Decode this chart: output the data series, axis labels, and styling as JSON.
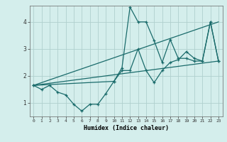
{
  "xlabel": "Humidex (Indice chaleur)",
  "background_color": "#d4eeec",
  "grid_color": "#b0d0ce",
  "line_color": "#1a6b6b",
  "xlim": [
    -0.5,
    23.5
  ],
  "ylim": [
    0.5,
    4.6
  ],
  "yticks": [
    1,
    2,
    3,
    4
  ],
  "xticks": [
    0,
    1,
    2,
    3,
    4,
    5,
    6,
    7,
    8,
    9,
    10,
    11,
    12,
    13,
    14,
    15,
    16,
    17,
    18,
    19,
    20,
    21,
    22,
    23
  ],
  "series": {
    "line1_x": [
      0,
      1,
      2,
      3,
      4,
      5,
      6,
      7,
      8,
      9,
      10,
      11,
      12,
      13,
      14,
      15,
      16,
      17,
      18,
      19,
      20,
      21,
      22,
      23
    ],
    "line1_y": [
      1.65,
      1.5,
      1.65,
      1.4,
      1.3,
      0.95,
      0.7,
      0.95,
      0.95,
      1.35,
      1.8,
      2.2,
      2.2,
      3.0,
      2.2,
      1.75,
      2.2,
      2.5,
      2.6,
      2.9,
      2.65,
      2.55,
      4.0,
      2.55
    ],
    "line2_x": [
      0,
      10,
      11,
      12,
      13,
      14,
      15,
      16,
      17,
      18,
      19,
      20,
      21,
      22,
      23
    ],
    "line2_y": [
      1.65,
      1.8,
      2.3,
      4.55,
      4.0,
      4.0,
      3.3,
      2.5,
      3.35,
      2.65,
      2.65,
      2.55,
      2.55,
      4.0,
      2.55
    ],
    "line3_x": [
      0,
      23
    ],
    "line3_y": [
      1.65,
      2.55
    ],
    "line4_x": [
      0,
      23
    ],
    "line4_y": [
      1.65,
      4.0
    ]
  }
}
